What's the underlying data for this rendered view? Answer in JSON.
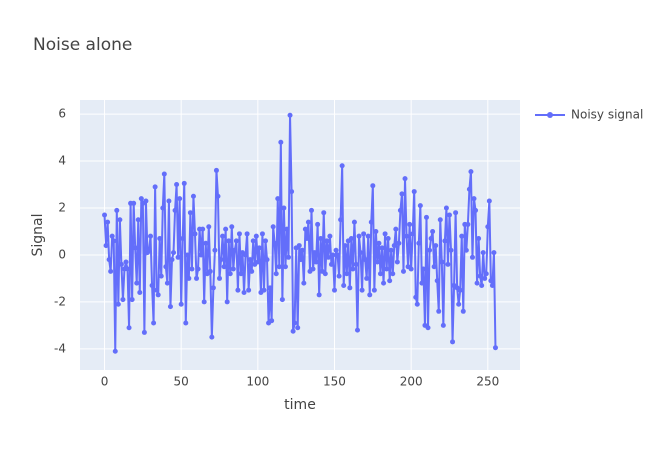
{
  "chart_data": {
    "type": "line",
    "title": "Noise alone",
    "x_label": "time",
    "y_label": "Signal",
    "x": [
      0,
      1,
      2,
      3,
      4,
      5,
      6,
      7,
      8,
      9,
      10,
      11,
      12,
      13,
      14,
      15,
      16,
      17,
      18,
      19,
      20,
      21,
      22,
      23,
      24,
      25,
      26,
      27,
      28,
      29,
      30,
      31,
      32,
      33,
      34,
      35,
      36,
      37,
      38,
      39,
      40,
      41,
      42,
      43,
      44,
      45,
      46,
      47,
      48,
      49,
      50,
      51,
      52,
      53,
      54,
      55,
      56,
      57,
      58,
      59,
      60,
      61,
      62,
      63,
      64,
      65,
      66,
      67,
      68,
      69,
      70,
      71,
      72,
      73,
      74,
      75,
      76,
      77,
      78,
      79,
      80,
      81,
      82,
      83,
      84,
      85,
      86,
      87,
      88,
      89,
      90,
      91,
      92,
      93,
      94,
      95,
      96,
      97,
      98,
      99,
      100,
      101,
      102,
      103,
      104,
      105,
      106,
      107,
      108,
      109,
      110,
      111,
      112,
      113,
      114,
      115,
      116,
      117,
      118,
      119,
      120,
      121,
      122,
      123,
      124,
      125,
      126,
      127,
      128,
      129,
      130,
      131,
      132,
      133,
      134,
      135,
      136,
      137,
      138,
      139,
      140,
      141,
      142,
      143,
      144,
      145,
      146,
      147,
      148,
      149,
      150,
      151,
      152,
      153,
      154,
      155,
      156,
      157,
      158,
      159,
      160,
      161,
      162,
      163,
      164,
      165,
      166,
      167,
      168,
      169,
      170,
      171,
      172,
      173,
      174,
      175,
      176,
      177,
      178,
      179,
      180,
      181,
      182,
      183,
      184,
      185,
      186,
      187,
      188,
      189,
      190,
      191,
      192,
      193,
      194,
      195,
      196,
      197,
      198,
      199,
      200,
      201,
      202,
      203,
      204,
      205,
      206,
      207,
      208,
      209,
      210,
      211,
      212,
      213,
      214,
      215,
      216,
      217,
      218,
      219,
      220,
      221,
      222,
      223,
      224,
      225,
      226,
      227,
      228,
      229,
      230,
      231,
      232,
      233,
      234,
      235,
      236,
      237,
      238,
      239,
      240,
      241,
      242,
      243,
      244,
      245,
      246,
      247,
      248,
      249,
      250,
      251,
      252,
      253,
      254,
      255
    ],
    "series": [
      {
        "name": "Noisy signal",
        "color": "#636efa",
        "values": [
          1.7,
          0.4,
          1.4,
          -0.2,
          -0.7,
          0.8,
          0.6,
          -4.1,
          1.9,
          -2.1,
          1.5,
          -0.4,
          -1.9,
          -0.6,
          -0.3,
          -0.6,
          -3.1,
          2.2,
          -1.9,
          2.2,
          0.3,
          -1.2,
          1.5,
          -1.6,
          2.4,
          2.2,
          -3.3,
          2.3,
          0.1,
          0.2,
          0.8,
          -1.3,
          -2.9,
          2.9,
          -1.5,
          -1.7,
          0.7,
          -0.9,
          2.0,
          3.45,
          -0.5,
          -1.2,
          2.3,
          -2.2,
          -0.2,
          0.1,
          1.9,
          3.0,
          -0.1,
          2.4,
          -2.1,
          0.7,
          3.05,
          -2.9,
          0.0,
          -1.0,
          1.8,
          -0.6,
          2.5,
          0.9,
          -1.0,
          -0.6,
          1.1,
          0.0,
          1.1,
          -2.0,
          0.5,
          -0.8,
          1.2,
          -0.7,
          -3.5,
          -1.4,
          0.2,
          3.6,
          2.5,
          -1.0,
          -0.2,
          0.8,
          -0.5,
          1.1,
          -2.0,
          0.6,
          -0.8,
          1.2,
          -0.6,
          0.2,
          0.6,
          -1.5,
          0.9,
          -0.8,
          0.1,
          -1.6,
          0.0,
          0.9,
          -1.5,
          -0.2,
          -0.7,
          0.6,
          -0.4,
          0.8,
          -0.3,
          0.3,
          -1.6,
          0.9,
          -1.5,
          0.6,
          -0.2,
          -2.9,
          -1.4,
          -2.8,
          1.2,
          0.5,
          -0.8,
          2.4,
          -0.5,
          4.8,
          -1.9,
          2.0,
          -0.5,
          1.1,
          -0.1,
          5.95,
          2.7,
          -3.25,
          -2.9,
          0.3,
          -3.1,
          0.4,
          -0.2,
          0.2,
          -1.2,
          1.1,
          0.7,
          1.4,
          -0.7,
          1.9,
          -0.6,
          0.1,
          -0.3,
          1.3,
          -1.7,
          0.7,
          -0.7,
          1.8,
          -0.8,
          0.6,
          -0.1,
          0.8,
          -0.4,
          0.0,
          -1.5,
          0.2,
          0.0,
          -0.9,
          1.5,
          3.8,
          -1.3,
          0.4,
          -0.8,
          0.6,
          -1.4,
          0.7,
          -0.6,
          1.4,
          -0.4,
          -3.2,
          0.8,
          0.1,
          -1.5,
          0.9,
          -0.2,
          -1.0,
          0.8,
          -1.7,
          1.4,
          2.95,
          -1.5,
          1.0,
          -0.3,
          0.5,
          -0.8,
          0.3,
          -1.2,
          0.9,
          -0.6,
          0.7,
          -1.1,
          0.2,
          -0.8,
          0.4,
          1.1,
          -0.3,
          0.5,
          1.9,
          2.6,
          -0.7,
          3.25,
          0.8,
          -0.5,
          1.3,
          -0.6,
          0.9,
          2.7,
          -1.8,
          -2.1,
          0.5,
          2.1,
          -1.2,
          -0.6,
          -3.0,
          1.6,
          -3.1,
          0.2,
          0.7,
          1.0,
          -0.5,
          0.4,
          -1.1,
          -2.4,
          1.5,
          -0.3,
          -3.0,
          0.6,
          2.0,
          -0.4,
          1.7,
          0.2,
          -3.7,
          -1.3,
          1.8,
          -1.4,
          -2.1,
          -1.5,
          0.8,
          -2.4,
          1.3,
          0.2,
          1.3,
          2.8,
          3.55,
          -0.1,
          2.4,
          1.9,
          -1.2,
          0.7,
          -0.9,
          -1.3,
          0.1,
          -1.0,
          -0.8,
          1.2,
          2.3,
          -1.1,
          -1.3,
          0.1,
          -3.95
        ]
      }
    ],
    "xlim": [
      -16,
      271
    ],
    "ylim": [
      -4.9,
      6.6
    ],
    "xticks": [
      0,
      50,
      100,
      150,
      200,
      250
    ],
    "yticks": [
      -4,
      -2,
      0,
      2,
      4,
      6
    ],
    "grid": true,
    "legend": "right"
  }
}
